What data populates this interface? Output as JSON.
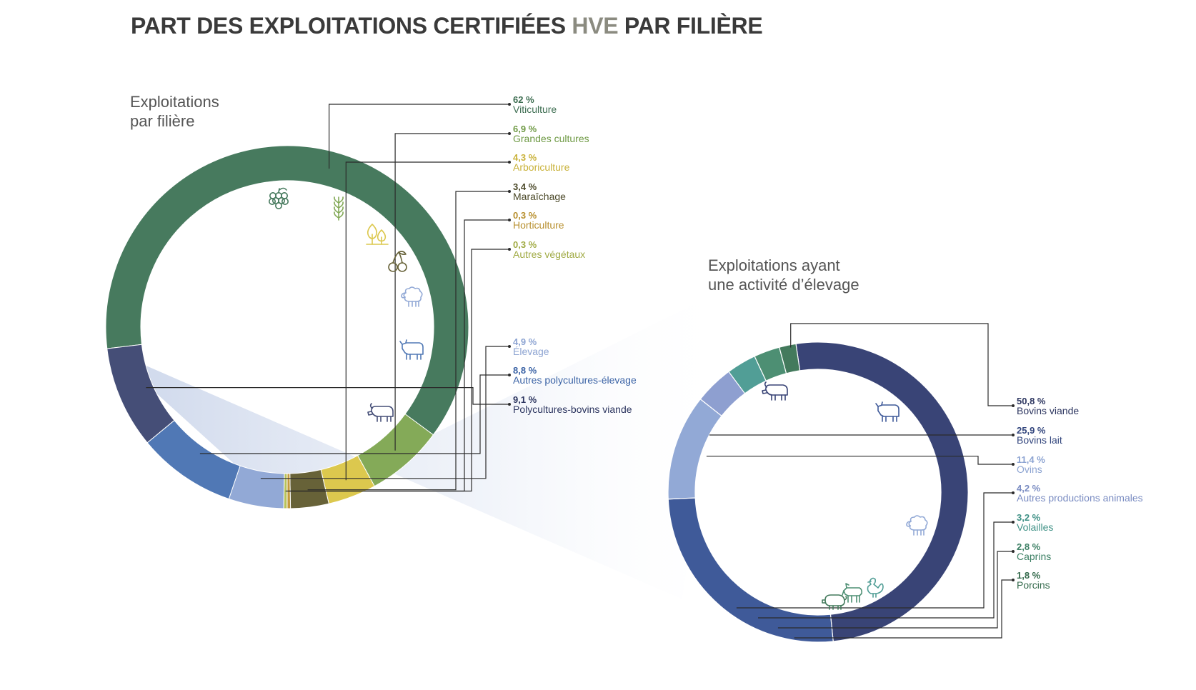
{
  "title": {
    "main": "PART DES EXPLOITATIONS CERTIFIÉES ",
    "hve": "HVE",
    "end": " PAR FILIÈRE",
    "main_color": "#3a3a3a",
    "hve_color": "#8b8b80"
  },
  "chart_data": [
    {
      "type": "pie",
      "title": "Exploitations par filière",
      "title_lines": [
        "Exploitations",
        "par filière"
      ],
      "unit": "%",
      "slices": [
        {
          "label": "Viticulture",
          "value": 62,
          "display": "62 %",
          "color": "#477a5e",
          "text_color": "#3e6e52",
          "icon": "grape-icon"
        },
        {
          "label": "Grandes cultures",
          "value": 6.9,
          "display": "6,9 %",
          "color": "#84aa58",
          "text_color": "#6f9a45",
          "icon": "wheat-icon"
        },
        {
          "label": "Arboriculture",
          "value": 4.3,
          "display": "4,3 %",
          "color": "#dcc84e",
          "text_color": "#c9b23a",
          "icon": "tree-icon"
        },
        {
          "label": "Maraîchage",
          "value": 3.4,
          "display": "3,4 %",
          "color": "#676238",
          "text_color": "#4c4a2a",
          "icon": "cherry-icon"
        },
        {
          "label": "Horticulture",
          "value": 0.3,
          "display": "0,3 %",
          "color": "#c39a3c",
          "text_color": "#b8902f",
          "icon": ""
        },
        {
          "label": "Autres végétaux",
          "value": 0.3,
          "display": "0,3 %",
          "color": "#b8c25a",
          "text_color": "#a1ab45",
          "icon": ""
        },
        {
          "label": "Élevage",
          "value": 4.9,
          "display": "4,9 %",
          "color": "#92a9d6",
          "text_color": "#8da4d2",
          "icon": "sheep-icon"
        },
        {
          "label": "Autres polycultures-élevage",
          "value": 8.8,
          "display": "8,8 %",
          "color": "#5078b5",
          "text_color": "#3c64a6",
          "icon": "cow-icon"
        },
        {
          "label": "Polycultures-bovins viande",
          "value": 9.1,
          "display": "9,1 %",
          "color": "#454e77",
          "text_color": "#2d3660",
          "icon": "bull-icon"
        }
      ]
    },
    {
      "type": "pie",
      "title": "Exploitations ayant une activité d’élevage",
      "title_lines": [
        "Exploitations ayant",
        "une activité d’élevage"
      ],
      "unit": "%",
      "slices": [
        {
          "label": "Bovins viande",
          "value": 50.8,
          "display": "50,8 %",
          "color": "#394476",
          "text_color": "#2d3660",
          "icon": "bull-icon"
        },
        {
          "label": "Bovins lait",
          "value": 25.9,
          "display": "25,9 %",
          "color": "#3f5a99",
          "text_color": "#34477e",
          "icon": "cow-icon"
        },
        {
          "label": "Ovins",
          "value": 11.4,
          "display": "11,4 %",
          "color": "#92a9d6",
          "text_color": "#8da4d2",
          "icon": "sheep-icon"
        },
        {
          "label": "Autres productions animales",
          "value": 4.2,
          "display": "4,2 %",
          "color": "#8e9fd0",
          "text_color": "#7a8cc2",
          "icon": ""
        },
        {
          "label": "Volailles",
          "value": 3.2,
          "display": "3,2 %",
          "color": "#519e96",
          "text_color": "#3f9186",
          "icon": "rooster-icon"
        },
        {
          "label": "Caprins",
          "value": 2.8,
          "display": "2,8 %",
          "color": "#4d8f73",
          "text_color": "#3d8065",
          "icon": "goat-icon"
        },
        {
          "label": "Porcins",
          "value": 1.8,
          "display": "1,8 %",
          "color": "#437a5c",
          "text_color": "#356b4d",
          "icon": "pig-icon"
        }
      ]
    }
  ]
}
